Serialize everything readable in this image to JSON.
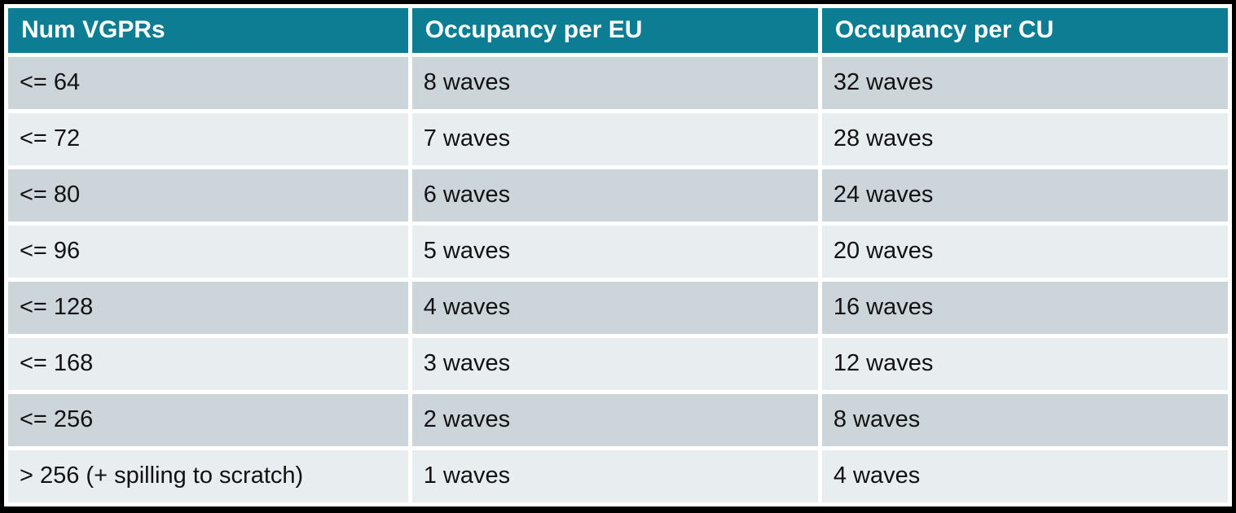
{
  "chart_data": {
    "type": "table",
    "columns": [
      "Num VGPRs",
      "Occupancy per EU",
      "Occupancy per CU"
    ],
    "rows": [
      [
        "<= 64",
        "8 waves",
        "32 waves"
      ],
      [
        "<= 72",
        "7 waves",
        "28 waves"
      ],
      [
        "<= 80",
        "6 waves",
        "24 waves"
      ],
      [
        "<= 96",
        "5 waves",
        "20 waves"
      ],
      [
        "<= 128",
        "4 waves",
        "16 waves"
      ],
      [
        "<= 168",
        "3 waves",
        "12 waves"
      ],
      [
        "<= 256",
        "2 waves",
        "8 waves"
      ],
      [
        "> 256 (+ spilling to scratch)",
        "1 waves",
        "4 waves"
      ]
    ]
  },
  "colors": {
    "header_bg": "#0c7d92",
    "header_text": "#ffffff",
    "row_odd_bg": "#ccd5da",
    "row_even_bg": "#e8edef",
    "body_text": "#121212",
    "grid_gap": "#ffffff",
    "frame_border": "#000000"
  }
}
